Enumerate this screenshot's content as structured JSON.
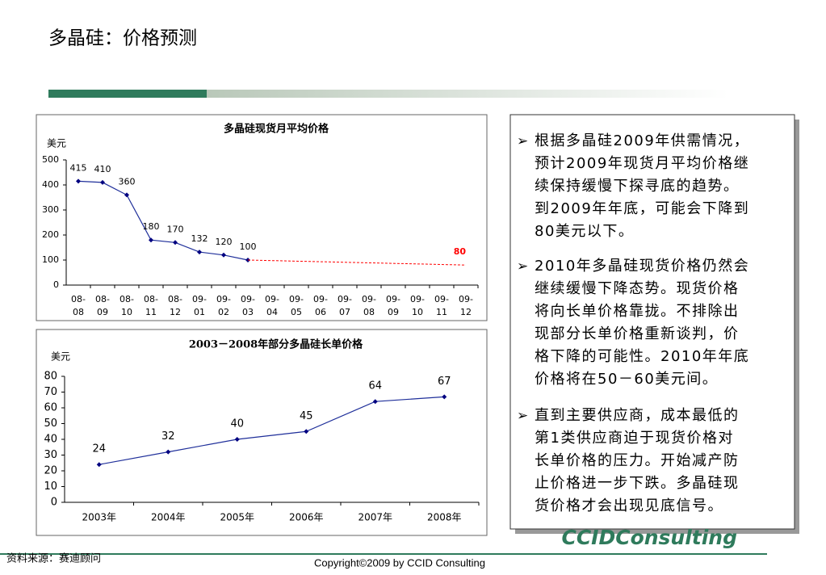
{
  "title": "多晶硅：价格预测",
  "chart_data": [
    {
      "type": "line",
      "title": "多晶硅现货月平均价格",
      "unit": "美元",
      "categories": [
        [
          "08-",
          "08"
        ],
        [
          "08-",
          "09"
        ],
        [
          "08-",
          "10"
        ],
        [
          "08-",
          "11"
        ],
        [
          "08-",
          "12"
        ],
        [
          "09-",
          "01"
        ],
        [
          "09-",
          "02"
        ],
        [
          "09-",
          "03"
        ],
        [
          "09-",
          "04"
        ],
        [
          "09-",
          "05"
        ],
        [
          "09-",
          "06"
        ],
        [
          "09-",
          "07"
        ],
        [
          "09-",
          "08"
        ],
        [
          "09-",
          "09"
        ],
        [
          "09-",
          "10"
        ],
        [
          "09-",
          "11"
        ],
        [
          "09-",
          "12"
        ]
      ],
      "series": [
        {
          "color": "#1f2f9a",
          "values": [
            415,
            410,
            360,
            180,
            170,
            132,
            120,
            100,
            null,
            null,
            null,
            null,
            null,
            null,
            null,
            null,
            null
          ]
        },
        {
          "color": "#ff0000",
          "dashed": true,
          "values": [
            null,
            null,
            null,
            null,
            null,
            null,
            null,
            null,
            null,
            null,
            null,
            null,
            null,
            null,
            null,
            null,
            80
          ]
        }
      ],
      "ylim": [
        0,
        500
      ],
      "yticks": [
        0,
        100,
        200,
        300,
        400,
        500
      ]
    },
    {
      "type": "line",
      "title": "2003－2008年部分多晶硅长单价格",
      "unit": "美元",
      "categories": [
        "2003年",
        "2004年",
        "2005年",
        "2006年",
        "2007年",
        "2008年"
      ],
      "series": [
        {
          "color": "#1f2f9a",
          "values": [
            24,
            32,
            40,
            45,
            64,
            67
          ]
        }
      ],
      "ylim": [
        0,
        80
      ],
      "yticks": [
        0,
        10,
        20,
        30,
        40,
        50,
        60,
        70,
        80
      ]
    }
  ],
  "bullets": [
    [
      "根据多晶硅2009年供需情况，",
      "预计2009年现货月平均价格继",
      "续保持缓慢下探寻底的趋势。",
      "到2009年年底，可能会下降到",
      "80美元以下。"
    ],
    [
      "2010年多晶硅现货价格仍然会",
      "继续缓慢下降态势。现货价格",
      "将向长单价格靠拢。不排除出",
      "现部分长单价格重新谈判，价",
      "格下降的可能性。2010年年底",
      "价格将在50－60美元间。"
    ],
    [
      "直到主要供应商，成本最低的",
      "第1类供应商迫于现货价格对",
      "长单价格的压力。开始减产防",
      "止价格进一步下跌。多晶硅现",
      "货价格才会出现见底信号。"
    ]
  ],
  "logo": "CCIDConsulting",
  "source": "资料来源：赛迪顾问",
  "copyright": "Copyright©2009 by CCID Consulting"
}
